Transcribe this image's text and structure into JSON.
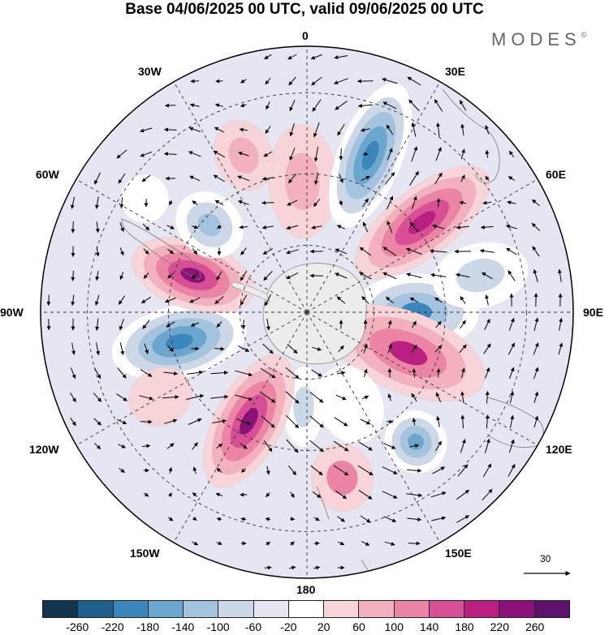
{
  "title": "Base 04/06/2025 00 UTC, valid 09/06/2025 00 UTC",
  "brand": "MODES",
  "brand_mark": "©",
  "longitude_labels": {
    "top": "0",
    "upper_right": "30E",
    "right_upper": "60E",
    "right": "90E",
    "right_lower": "120E",
    "lower_right": "150E",
    "bottom": "180",
    "lower_left": "150W",
    "left_lower": "120W",
    "left": "90W",
    "left_upper": "60W",
    "upper_left": "30W"
  },
  "reference_vector": {
    "label": "30"
  },
  "colorbar": {
    "colors": [
      "#11344f",
      "#1f5d8c",
      "#3a86bd",
      "#6ba6cf",
      "#a3c3de",
      "#ccd8e8",
      "#e6e6f2",
      "#ffffff",
      "#f7d4d7",
      "#f3b0bd",
      "#ec85a5",
      "#d94f95",
      "#b9207f",
      "#8c117a",
      "#5c116c"
    ],
    "tick_labels": [
      "-260",
      "-220",
      "-180",
      "-140",
      "-100",
      "-60",
      "-20",
      "20",
      "60",
      "100",
      "140",
      "180",
      "220",
      "260"
    ]
  },
  "map": {
    "projection": "south-polar-stereographic",
    "anomaly_cells": [
      {
        "lon": -2,
        "lat": -52,
        "value": 95,
        "rx": 42,
        "ry": 70
      },
      {
        "lon": 22,
        "lat": -42,
        "value": -200,
        "rx": 40,
        "ry": 95
      },
      {
        "lon": 52,
        "lat": -48,
        "value": 215,
        "rx": 42,
        "ry": 100
      },
      {
        "lon": 90,
        "lat": -58,
        "value": -185,
        "rx": 48,
        "ry": 78
      },
      {
        "lon": 112,
        "lat": -58,
        "value": 180,
        "rx": 50,
        "ry": 100
      },
      {
        "lon": 140,
        "lat": -42,
        "value": -160,
        "rx": 38,
        "ry": 40
      },
      {
        "lon": 168,
        "lat": -42,
        "value": 115,
        "rx": 38,
        "ry": 42
      },
      {
        "lon": -178,
        "lat": -62,
        "value": -100,
        "rx": 25,
        "ry": 50
      },
      {
        "lon": -152,
        "lat": -54,
        "value": 225,
        "rx": 42,
        "ry": 90
      },
      {
        "lon": -103,
        "lat": -52,
        "value": -200,
        "rx": 45,
        "ry": 85
      },
      {
        "lon": -72,
        "lat": -55,
        "value": 225,
        "rx": 42,
        "ry": 78
      },
      {
        "lon": -48,
        "lat": -52,
        "value": -130,
        "rx": 38,
        "ry": 45
      },
      {
        "lon": -22,
        "lat": -42,
        "value": 80,
        "rx": 35,
        "ry": 45
      },
      {
        "lon": -55,
        "lat": -35,
        "value": -70,
        "rx": 30,
        "ry": 30
      },
      {
        "lon": 78,
        "lat": -40,
        "value": -80,
        "rx": 40,
        "ry": 60
      },
      {
        "lon": -120,
        "lat": -42,
        "value": 60,
        "rx": 35,
        "ry": 40
      },
      {
        "lon": 155,
        "lat": -60,
        "value": -45,
        "rx": 40,
        "ry": 50
      }
    ]
  }
}
